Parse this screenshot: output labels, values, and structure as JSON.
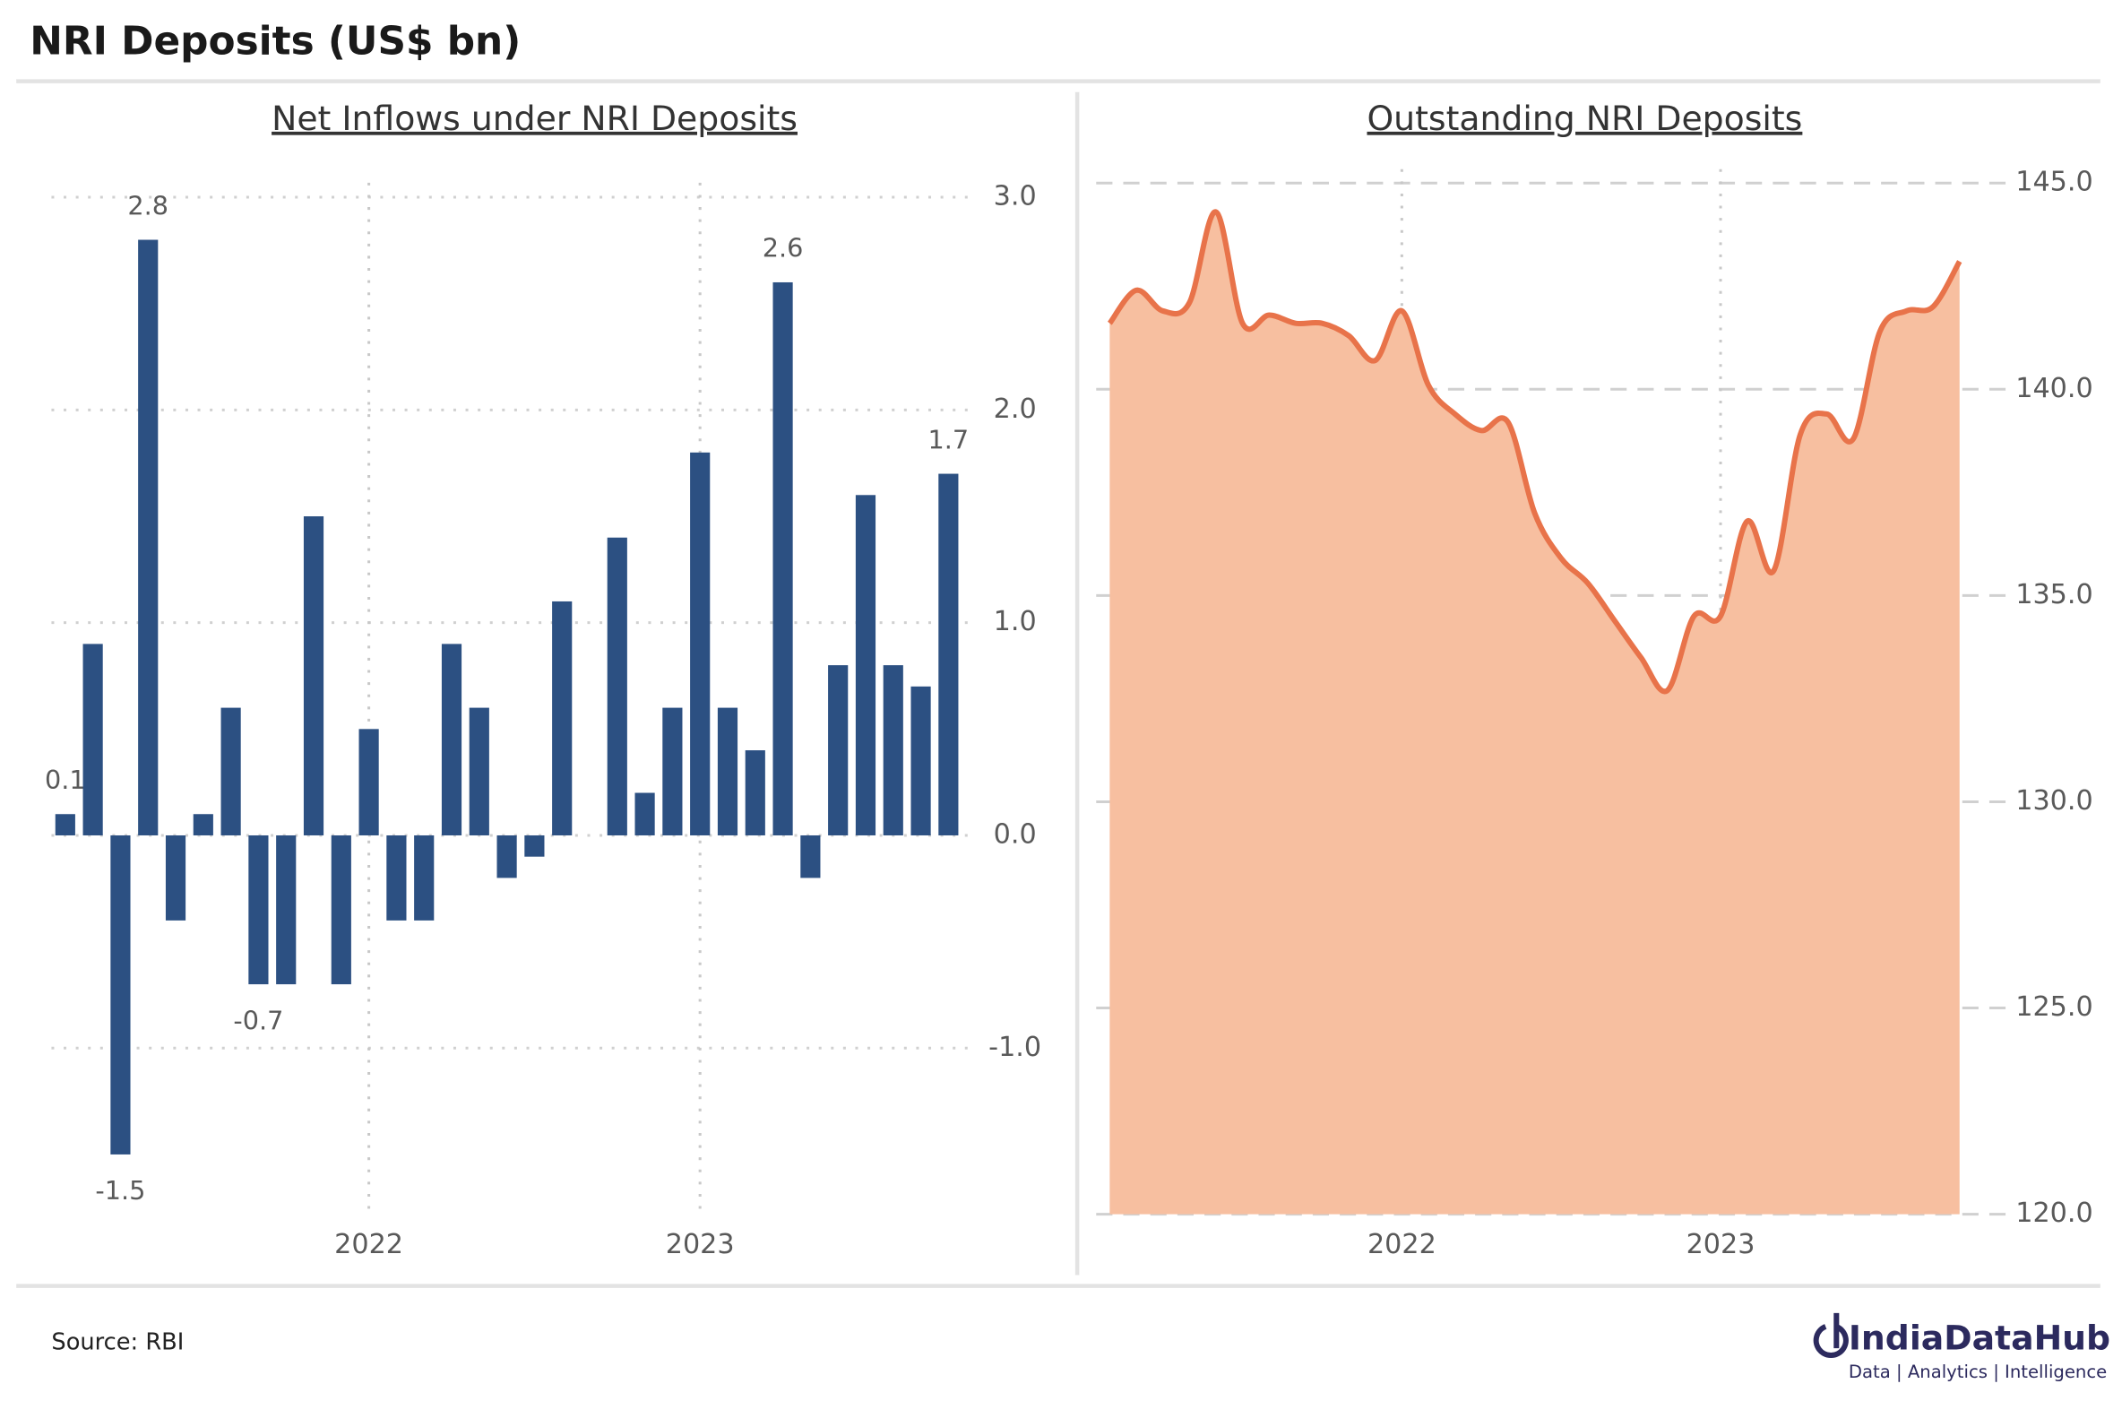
{
  "title": "NRI Deposits (US$ bn)",
  "source": "Source: RBI",
  "brand": {
    "name": "IndiaDataHub",
    "tagline": "Data | Analytics | Intelligence"
  },
  "chart_data": [
    {
      "type": "bar",
      "title": "Net Inflows under NRI Deposits",
      "categories": [
        null,
        null,
        null,
        null,
        null,
        null,
        null,
        null,
        null,
        null,
        null,
        "2022",
        null,
        null,
        null,
        null,
        null,
        null,
        null,
        null,
        null,
        null,
        null,
        "2023",
        null,
        null,
        null,
        null,
        null,
        null,
        null,
        null,
        null
      ],
      "values": [
        0.1,
        0.9,
        -1.5,
        2.8,
        -0.4,
        0.1,
        0.6,
        -0.7,
        -0.7,
        1.5,
        -0.7,
        0.5,
        -0.4,
        -0.4,
        0.9,
        0.6,
        -0.2,
        -0.1,
        1.1,
        0,
        1.4,
        0.2,
        0.6,
        1.8,
        0.6,
        0.4,
        2.6,
        -0.2,
        0.8,
        1.6,
        0.8,
        0.7,
        1.7
      ],
      "value_labels": [
        "0.1",
        null,
        "-1.5",
        "2.8",
        null,
        null,
        null,
        "-0.7",
        null,
        null,
        null,
        null,
        null,
        null,
        null,
        null,
        null,
        null,
        null,
        null,
        null,
        null,
        null,
        null,
        null,
        null,
        "2.6",
        null,
        null,
        null,
        null,
        null,
        "1.7"
      ],
      "color": "#2c5082",
      "ylim": [
        -1.8,
        3.1
      ],
      "yticks": [
        {
          "value": -1,
          "label": "-1.0"
        },
        {
          "value": 0,
          "label": "0.0"
        },
        {
          "value": 1,
          "label": "1.0"
        },
        {
          "value": 2,
          "label": "2.0"
        },
        {
          "value": 3,
          "label": "3.0"
        }
      ],
      "grid": true
    },
    {
      "type": "area",
      "title": "Outstanding NRI Deposits",
      "categories": [
        null,
        null,
        null,
        null,
        null,
        null,
        null,
        null,
        null,
        null,
        null,
        "2022",
        null,
        null,
        null,
        null,
        null,
        null,
        null,
        null,
        null,
        null,
        null,
        "2023",
        null,
        null,
        null,
        null,
        null,
        null,
        null,
        null,
        null
      ],
      "values": [
        141.6,
        142.4,
        141.9,
        142.1,
        144.3,
        141.6,
        141.8,
        141.6,
        141.6,
        141.3,
        140.7,
        141.9,
        140.1,
        139.4,
        139.0,
        139.2,
        137.0,
        135.9,
        135.3,
        134.4,
        133.5,
        132.7,
        134.5,
        134.5,
        136.8,
        135.6,
        138.9,
        139.4,
        138.8,
        141.4,
        141.9,
        142.0,
        143.1
      ],
      "color": "#e8734a",
      "fill": "#f7bfa0",
      "ylim": [
        120,
        145.5
      ],
      "yticks": [
        {
          "value": 120,
          "label": "120.0"
        },
        {
          "value": 125,
          "label": "125.0"
        },
        {
          "value": 130,
          "label": "130.0"
        },
        {
          "value": 135,
          "label": "135.0"
        },
        {
          "value": 140,
          "label": "140.0"
        },
        {
          "value": 145,
          "label": "145.0"
        }
      ],
      "grid": true
    }
  ]
}
